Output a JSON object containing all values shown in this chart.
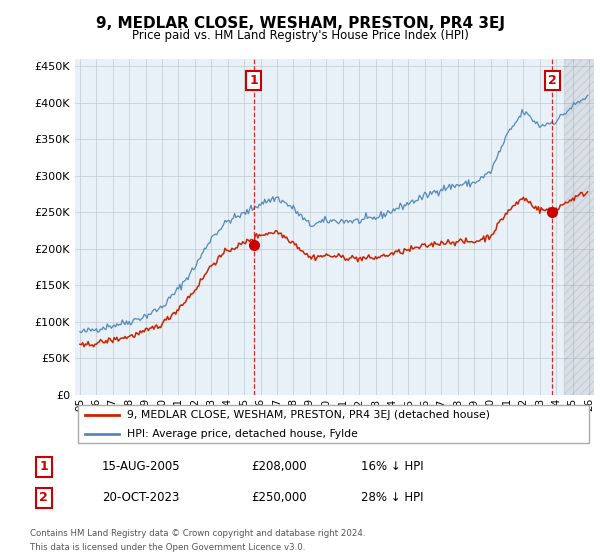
{
  "title": "9, MEDLAR CLOSE, WESHAM, PRESTON, PR4 3EJ",
  "subtitle": "Price paid vs. HM Land Registry's House Price Index (HPI)",
  "ylim": [
    0,
    460000
  ],
  "yticks": [
    0,
    50000,
    100000,
    150000,
    200000,
    250000,
    300000,
    350000,
    400000,
    450000
  ],
  "background_color": "#ffffff",
  "chart_bg_color": "#e8f0f8",
  "grid_color": "#c0c8d0",
  "sale1_color": "#cc0000",
  "sale2_color": "#cc0000",
  "legend_house_label": "9, MEDLAR CLOSE, WESHAM, PRESTON, PR4 3EJ (detached house)",
  "legend_hpi_label": "HPI: Average price, detached house, Fylde",
  "house_line_color": "#cc2200",
  "hpi_line_color": "#5588bb",
  "footer_line1": "Contains HM Land Registry data © Crown copyright and database right 2024.",
  "footer_line2": "This data is licensed under the Open Government Licence v3.0.",
  "table_row1": [
    "1",
    "15-AUG-2005",
    "£208,000",
    "16% ↓ HPI"
  ],
  "table_row2": [
    "2",
    "20-OCT-2023",
    "£250,000",
    "28% ↓ HPI"
  ],
  "start_year": 1995,
  "end_year": 2026
}
